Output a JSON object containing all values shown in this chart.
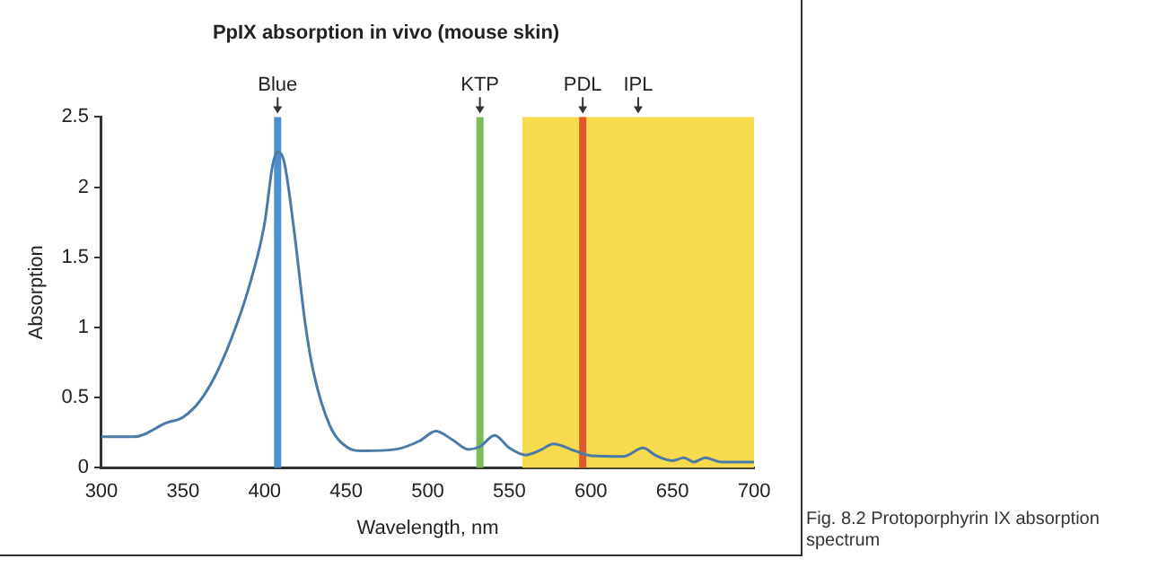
{
  "chart_data": {
    "type": "line",
    "title": "PpIX absorption in vivo (mouse skin)",
    "xlabel": "Wavelength, nm",
    "ylabel": "Absorption",
    "x": [
      300,
      320,
      340,
      350,
      360,
      370,
      380,
      390,
      400,
      405,
      408,
      412,
      418,
      425,
      430,
      440,
      450,
      460,
      480,
      495,
      505,
      515,
      525,
      532,
      541,
      550,
      560,
      570,
      577,
      590,
      600,
      620,
      632,
      640,
      650,
      657,
      663,
      670,
      680,
      700
    ],
    "series": [
      {
        "color": "#4a7aa8",
        "values": [
          0.22,
          0.22,
          0.32,
          0.36,
          0.47,
          0.66,
          0.93,
          1.27,
          1.74,
          2.16,
          2.25,
          2.18,
          1.7,
          1.02,
          0.68,
          0.3,
          0.15,
          0.12,
          0.13,
          0.19,
          0.26,
          0.2,
          0.13,
          0.15,
          0.23,
          0.14,
          0.09,
          0.13,
          0.17,
          0.12,
          0.085,
          0.08,
          0.14,
          0.085,
          0.05,
          0.07,
          0.04,
          0.07,
          0.04,
          0.04
        ]
      }
    ],
    "xlim": [
      300,
      700
    ],
    "xticks": [
      300,
      350,
      400,
      450,
      500,
      550,
      600,
      650,
      700
    ],
    "ylim": [
      0,
      2.5
    ],
    "yticks": [
      0,
      0.5,
      1,
      1.5,
      2,
      2.5
    ],
    "ref_lines": [
      {
        "axis": "x",
        "value": 408,
        "label": "Blue",
        "color": "#4d8fd1"
      },
      {
        "axis": "x",
        "value": 532,
        "label": "KTP",
        "color": "#7dbb5a"
      },
      {
        "axis": "x",
        "value": 595,
        "label": "PDL",
        "color": "#e0582c"
      }
    ],
    "bands": [
      {
        "axis": "x",
        "from": 558,
        "to": 700,
        "label": "IPL",
        "color": "#f8da4e"
      }
    ],
    "annotations": [
      "Fig. 8.2 Protoporphyrin IX absorption spectrum"
    ],
    "grid": false,
    "legend": false,
    "marker": "none",
    "line_style": "solid"
  }
}
